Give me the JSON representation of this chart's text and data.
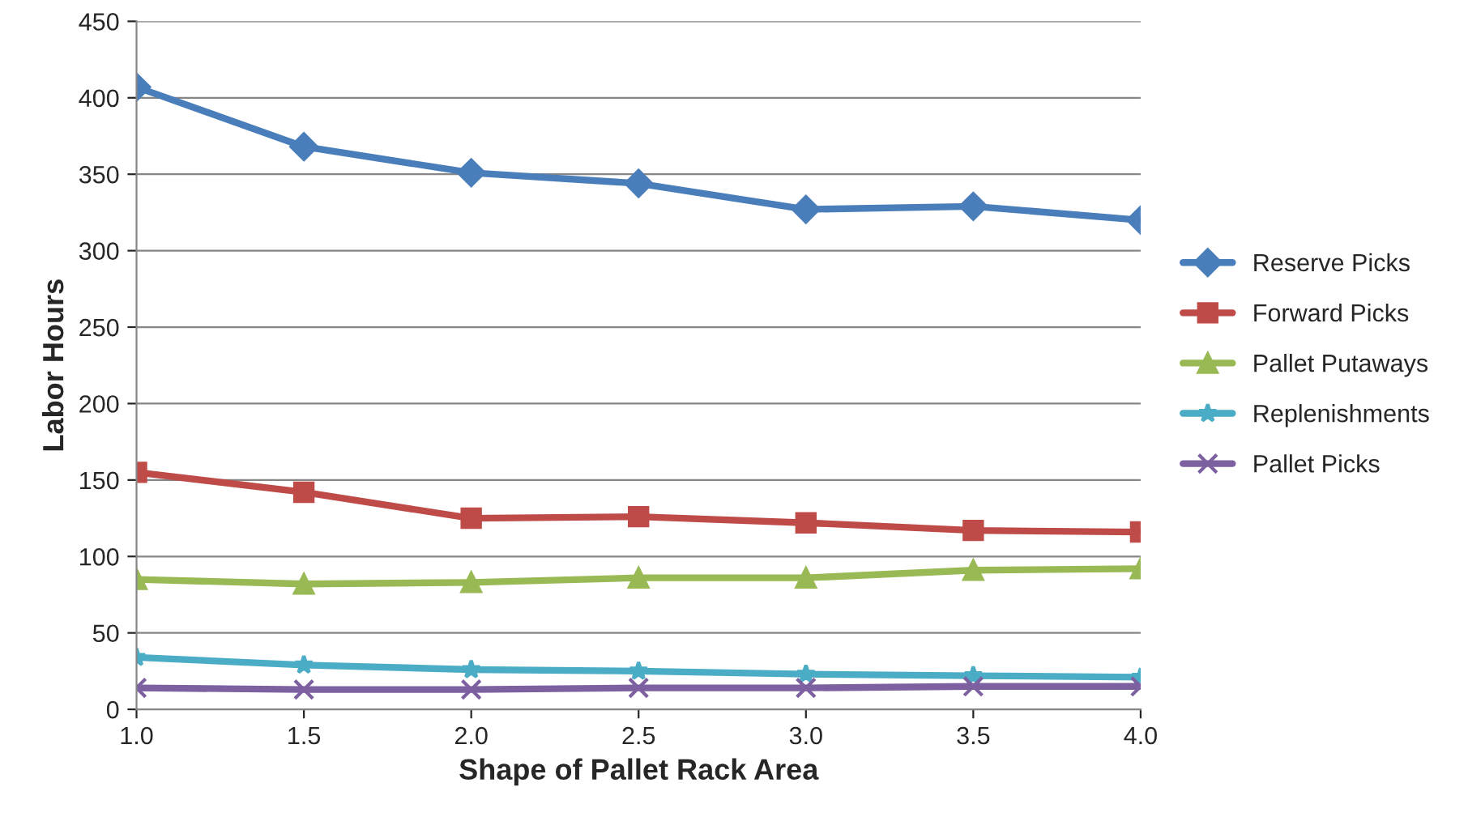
{
  "chart_data": {
    "type": "line",
    "xlabel": "Shape of Pallet Rack Area",
    "ylabel": "Labor Hours",
    "x": [
      1.0,
      1.5,
      2.0,
      2.5,
      3.0,
      3.5,
      4.0
    ],
    "series": [
      {
        "name": "Reserve Picks",
        "color": "#4a7ebb",
        "marker": "diamond",
        "values": [
          407,
          368,
          351,
          344,
          327,
          329,
          320
        ]
      },
      {
        "name": "Forward Picks",
        "color": "#be4b48",
        "marker": "square",
        "values": [
          155,
          142,
          125,
          126,
          122,
          117,
          116
        ]
      },
      {
        "name": "Pallet Putaways",
        "color": "#98b954",
        "marker": "triangle",
        "values": [
          85,
          82,
          83,
          86,
          86,
          91,
          92
        ]
      },
      {
        "name": "Replenishments",
        "color": "#4bacc6",
        "marker": "star",
        "values": [
          34,
          29,
          26,
          25,
          23,
          22,
          21
        ]
      },
      {
        "name": "Pallet Picks",
        "color": "#7d60a0",
        "marker": "cross",
        "values": [
          14,
          13,
          13,
          14,
          14,
          15,
          15
        ]
      }
    ],
    "xlim": [
      1.0,
      4.0
    ],
    "xticks": [
      {
        "value": 1.0,
        "label": "1.0"
      },
      {
        "value": 1.5,
        "label": "1.5"
      },
      {
        "value": 2.0,
        "label": "2.0"
      },
      {
        "value": 2.5,
        "label": "2.5"
      },
      {
        "value": 3.0,
        "label": "3.0"
      },
      {
        "value": 3.5,
        "label": "3.5"
      },
      {
        "value": 4.0,
        "label": "4.0"
      }
    ],
    "ylim": [
      0,
      450
    ],
    "yticks": [
      0,
      50,
      100,
      150,
      200,
      250,
      300,
      350,
      400,
      450
    ],
    "grid": "y",
    "legend": "right",
    "line_style": "solid"
  }
}
